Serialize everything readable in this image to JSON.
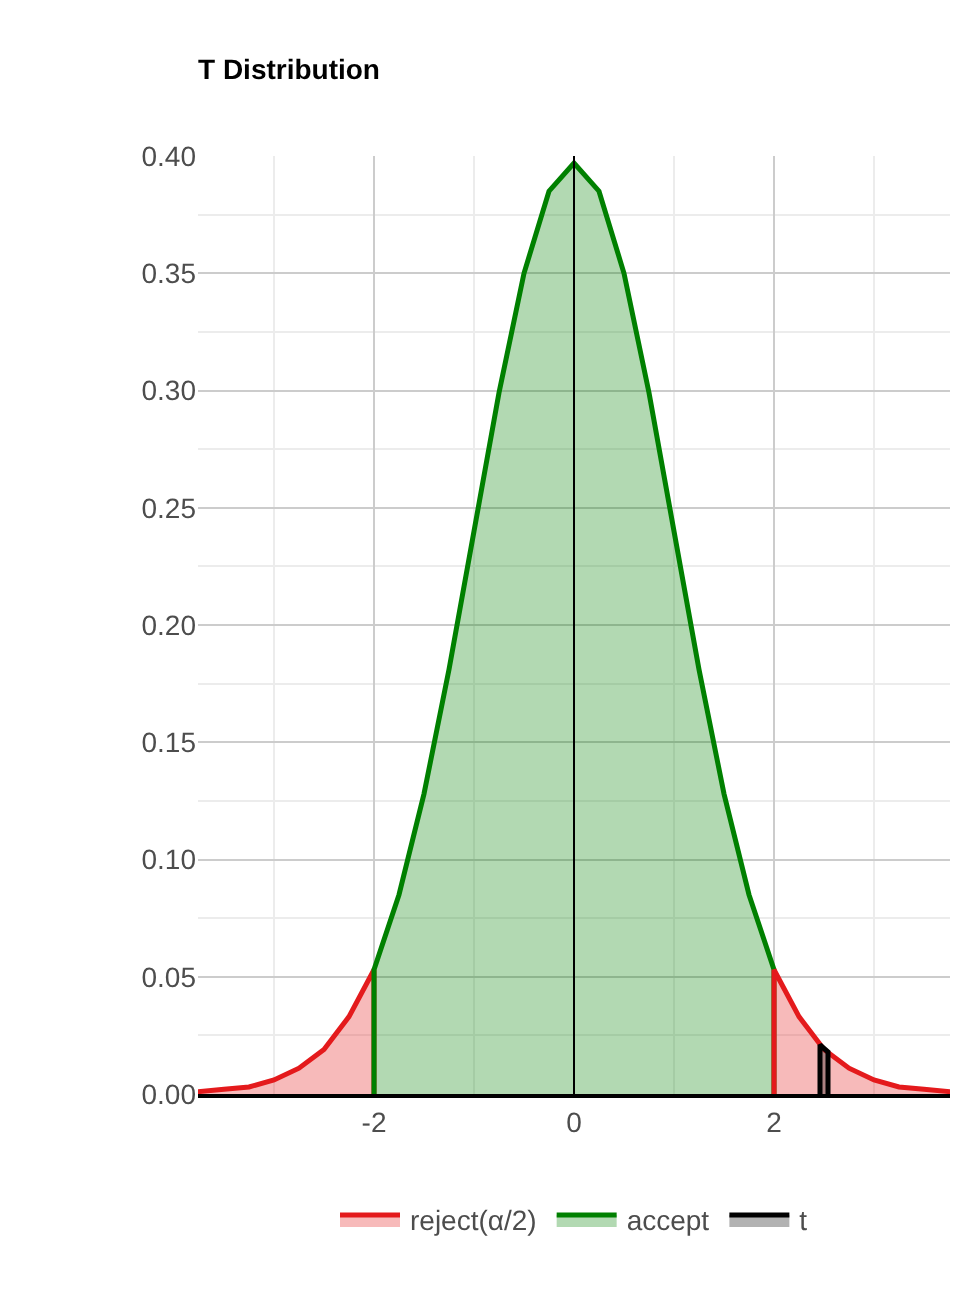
{
  "chart_data": {
    "type": "area",
    "title": "T Distribution",
    "series": [
      {
        "name": "reject(α/2)",
        "color": "#e41a1c",
        "x": [
          -3.76,
          -3.5,
          -3.25,
          -3.0,
          -2.75,
          -2.5,
          -2.25,
          -2.0
        ],
        "values": [
          0.001,
          0.002,
          0.003,
          0.006,
          0.011,
          0.019,
          0.033,
          0.053
        ]
      },
      {
        "name": "accept",
        "color": "#008000",
        "x": [
          -2.0,
          -1.75,
          -1.5,
          -1.25,
          -1.0,
          -0.75,
          -0.5,
          -0.25,
          0.0,
          0.25,
          0.5,
          0.75,
          1.0,
          1.25,
          1.5,
          1.75,
          2.0
        ],
        "values": [
          0.053,
          0.085,
          0.128,
          0.181,
          0.24,
          0.299,
          0.35,
          0.385,
          0.397,
          0.385,
          0.35,
          0.299,
          0.24,
          0.181,
          0.128,
          0.085,
          0.053
        ]
      },
      {
        "color": "#e41a1c",
        "x": [
          2.0,
          2.25,
          2.5,
          2.75,
          3.0,
          3.25,
          3.5,
          3.76
        ],
        "values": [
          0.053,
          0.033,
          0.019,
          0.011,
          0.006,
          0.003,
          0.002,
          0.001
        ]
      },
      {
        "name": "t",
        "color": "#000000",
        "x": [
          2.46,
          2.54
        ],
        "values": [
          0.021,
          0.018
        ]
      }
    ],
    "xlim": [
      -3.76,
      3.76
    ],
    "xticks": [
      -2,
      0,
      2
    ],
    "ylim": [
      0,
      0.4
    ],
    "yticks": [
      {
        "value": 0,
        "label": "0.00"
      },
      {
        "value": 0.05,
        "label": "0.05"
      },
      {
        "value": 0.1,
        "label": "0.10"
      },
      {
        "value": 0.15,
        "label": "0.15"
      },
      {
        "value": 0.2,
        "label": "0.20"
      },
      {
        "value": 0.25,
        "label": "0.25"
      },
      {
        "value": 0.3,
        "label": "0.30"
      },
      {
        "value": 0.35,
        "label": "0.35"
      },
      {
        "value": 0.4,
        "label": "0.40"
      }
    ],
    "ref_lines": [
      {
        "axis": "x",
        "value": 0,
        "color": "#000000"
      }
    ],
    "grid": true,
    "legend": "bottom"
  }
}
